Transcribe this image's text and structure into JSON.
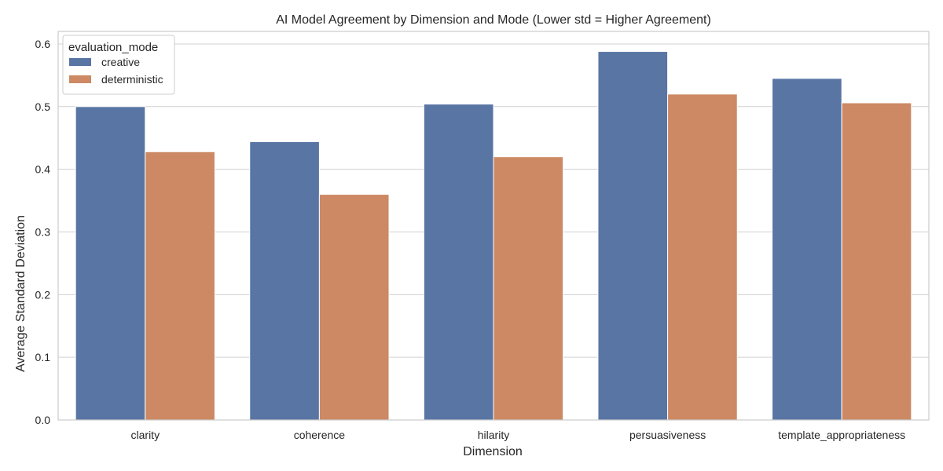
{
  "chart_data": {
    "type": "bar",
    "title": "AI Model Agreement by Dimension and Mode (Lower std = Higher Agreement)",
    "xlabel": "Dimension",
    "ylabel": "Average Standard Deviation",
    "categories": [
      "clarity",
      "coherence",
      "hilarity",
      "persuasiveness",
      "template_appropriateness"
    ],
    "series": [
      {
        "name": "creative",
        "color": "#5875a4",
        "values": [
          0.5,
          0.444,
          0.504,
          0.588,
          0.545
        ]
      },
      {
        "name": "deterministic",
        "color": "#cc8963",
        "values": [
          0.428,
          0.36,
          0.42,
          0.52,
          0.506
        ]
      }
    ],
    "ylim": [
      0,
      0.62
    ],
    "yticks": [
      "0.0",
      "0.1",
      "0.2",
      "0.3",
      "0.4",
      "0.5",
      "0.6"
    ],
    "grid": true,
    "legend": {
      "title": "evaluation_mode",
      "placement": "top-left"
    }
  }
}
